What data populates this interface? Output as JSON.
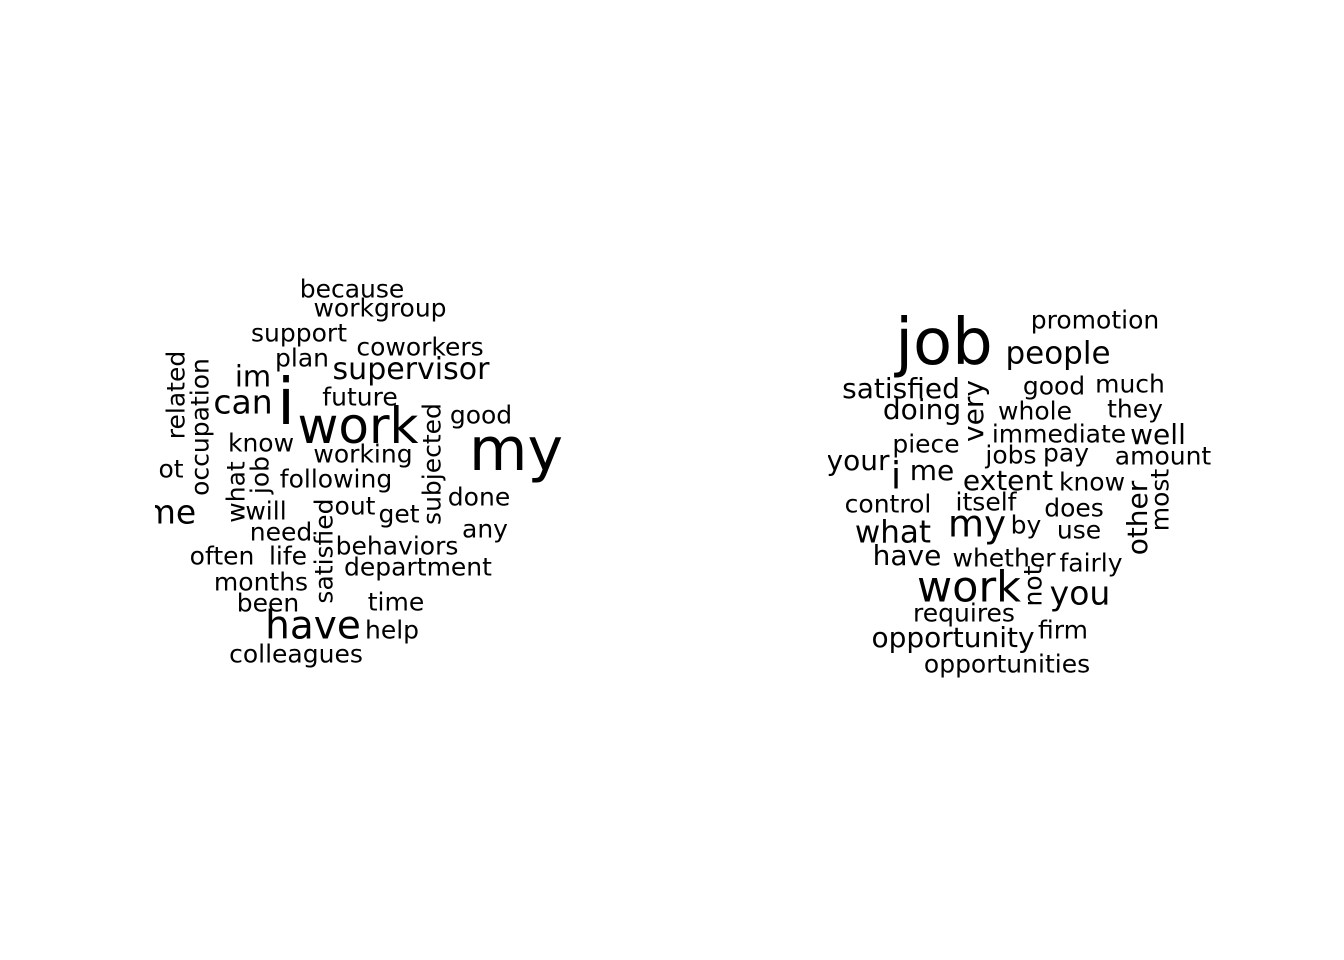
{
  "clouds": [
    {
      "id": "left",
      "words": [
        "because",
        "workgroup",
        "support",
        "coworkers",
        "plan",
        "supervisor",
        "im",
        "can",
        "i",
        "future",
        "related",
        "occupation",
        "work",
        "good",
        "my",
        "know",
        "working",
        "subjected",
        "ot",
        "what",
        "job",
        "following",
        "me",
        "will",
        "out",
        "done",
        "get",
        "need",
        "satisfied",
        "any",
        "behaviors",
        "often",
        "life",
        "months",
        "department",
        "been",
        "time",
        "have",
        "help",
        "colleagues"
      ]
    },
    {
      "id": "right",
      "words": [
        "promotion",
        "job",
        "people",
        "satisfied",
        "good",
        "much",
        "very",
        "doing",
        "whole",
        "they",
        "immediate",
        "well",
        "piece",
        "jobs",
        "pay",
        "amount",
        "your",
        "i",
        "me",
        "extent",
        "know",
        "control",
        "itself",
        "does",
        "other",
        "most",
        "my",
        "by",
        "use",
        "what",
        "have",
        "whether",
        "fairly",
        "work",
        "not",
        "you",
        "requires",
        "opportunity",
        "firm",
        "opportunities"
      ]
    }
  ]
}
